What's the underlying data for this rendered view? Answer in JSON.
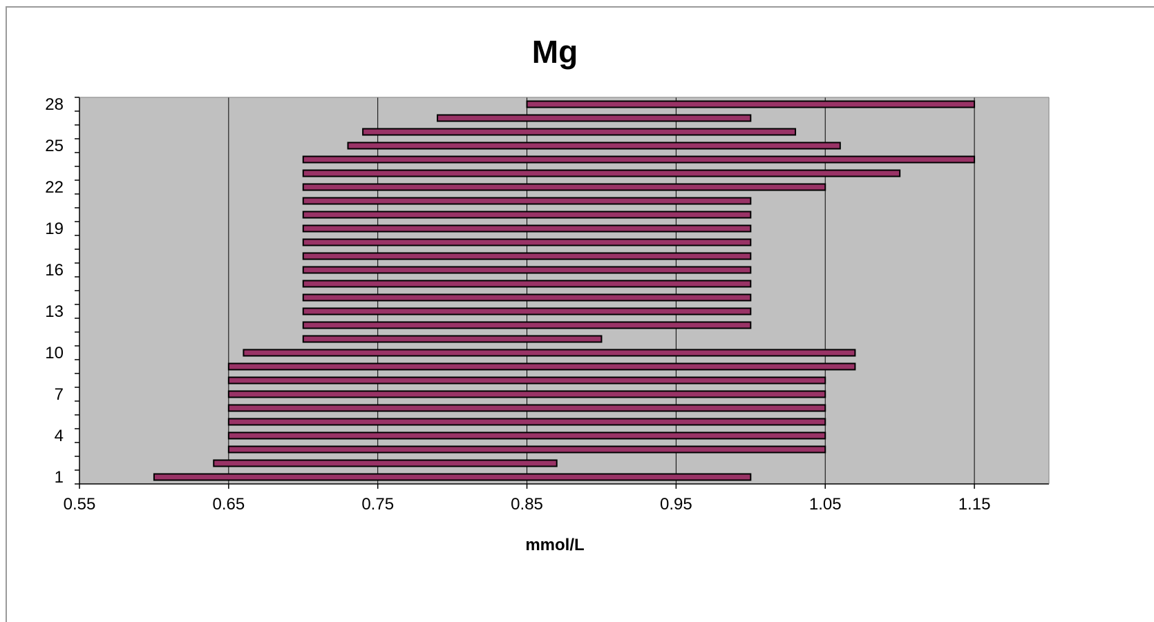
{
  "chart_data": {
    "type": "bar",
    "orientation": "horizontal-range",
    "title": "Mg",
    "xlabel": "mmol/L",
    "ylabel": "",
    "xlim": [
      0.55,
      1.2
    ],
    "ylim": [
      1,
      28
    ],
    "x_ticks": [
      "0.55",
      "0.65",
      "0.75",
      "0.85",
      "0.95",
      "1.05",
      "1.15"
    ],
    "y_ticks": [
      "1",
      "4",
      "7",
      "10",
      "13",
      "16",
      "19",
      "22",
      "25",
      "28"
    ],
    "grid": "vertical",
    "bar_color": "#993366",
    "plot_background": "#c0c0c0",
    "bars": [
      {
        "row": 1,
        "low": 0.6,
        "high": 1.0
      },
      {
        "row": 2,
        "low": 0.64,
        "high": 0.87
      },
      {
        "row": 3,
        "low": 0.65,
        "high": 1.05
      },
      {
        "row": 4,
        "low": 0.65,
        "high": 1.05
      },
      {
        "row": 5,
        "low": 0.65,
        "high": 1.05
      },
      {
        "row": 6,
        "low": 0.65,
        "high": 1.05
      },
      {
        "row": 7,
        "low": 0.65,
        "high": 1.05
      },
      {
        "row": 8,
        "low": 0.65,
        "high": 1.05
      },
      {
        "row": 9,
        "low": 0.65,
        "high": 1.07
      },
      {
        "row": 10,
        "low": 0.66,
        "high": 1.07
      },
      {
        "row": 11,
        "low": 0.7,
        "high": 0.9
      },
      {
        "row": 12,
        "low": 0.7,
        "high": 1.0
      },
      {
        "row": 13,
        "low": 0.7,
        "high": 1.0
      },
      {
        "row": 14,
        "low": 0.7,
        "high": 1.0
      },
      {
        "row": 15,
        "low": 0.7,
        "high": 1.0
      },
      {
        "row": 16,
        "low": 0.7,
        "high": 1.0
      },
      {
        "row": 17,
        "low": 0.7,
        "high": 1.0
      },
      {
        "row": 18,
        "low": 0.7,
        "high": 1.0
      },
      {
        "row": 19,
        "low": 0.7,
        "high": 1.0
      },
      {
        "row": 20,
        "low": 0.7,
        "high": 1.0
      },
      {
        "row": 21,
        "low": 0.7,
        "high": 1.0
      },
      {
        "row": 22,
        "low": 0.7,
        "high": 1.05
      },
      {
        "row": 23,
        "low": 0.7,
        "high": 1.1
      },
      {
        "row": 24,
        "low": 0.7,
        "high": 1.15
      },
      {
        "row": 25,
        "low": 0.73,
        "high": 1.06
      },
      {
        "row": 26,
        "low": 0.74,
        "high": 1.03
      },
      {
        "row": 27,
        "low": 0.79,
        "high": 1.0
      },
      {
        "row": 28,
        "low": 0.85,
        "high": 1.15
      }
    ]
  }
}
